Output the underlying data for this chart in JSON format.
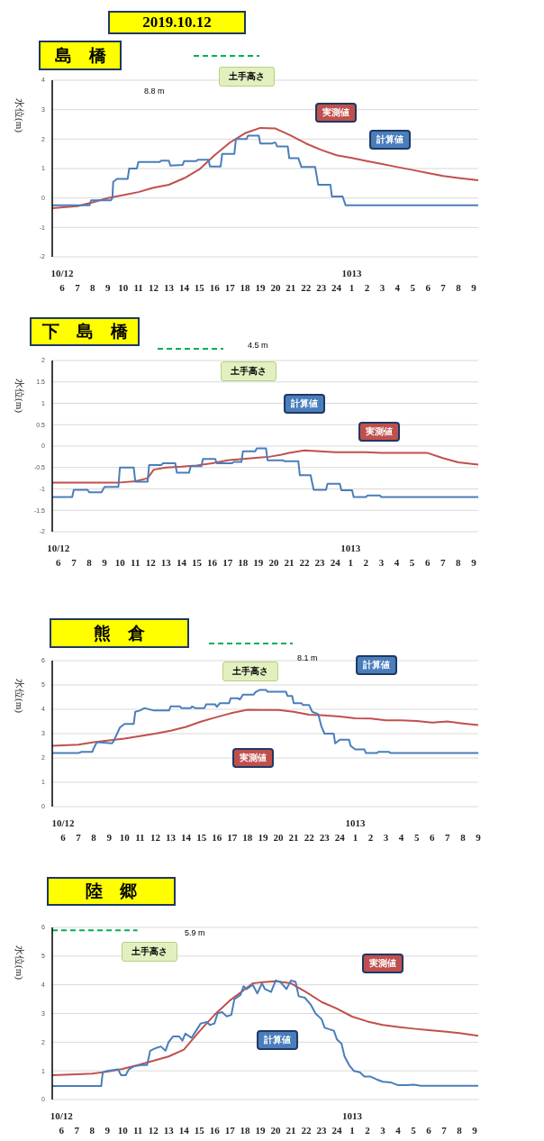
{
  "chart_data": [
    {
      "type": "line",
      "title": "2019.10.12",
      "subtitle": "島　橋",
      "ylabel": "水位(m)",
      "xlim": [
        "2019-10-12T05:21",
        "2019-10-13T09:18"
      ],
      "ylim": [
        -2,
        4
      ],
      "yticks": [
        -2,
        -1,
        0,
        1,
        2,
        3,
        4
      ],
      "grid": "y",
      "xticks": [
        {
          "value": "2019-10-12T06:00",
          "label": "10/12\n6"
        },
        {
          "value": "2019-10-12T07:00",
          "label": "7"
        },
        {
          "value": "2019-10-12T08:00",
          "label": "8"
        },
        {
          "value": "2019-10-12T09:00",
          "label": "9"
        },
        {
          "value": "2019-10-12T10:00",
          "label": "10"
        },
        {
          "value": "2019-10-12T11:00",
          "label": "11"
        },
        {
          "value": "2019-10-12T12:00",
          "label": "12"
        },
        {
          "value": "2019-10-12T13:00",
          "label": "13"
        },
        {
          "value": "2019-10-12T14:00",
          "label": "14"
        },
        {
          "value": "2019-10-12T15:00",
          "label": "15"
        },
        {
          "value": "2019-10-12T16:00",
          "label": "16"
        },
        {
          "value": "2019-10-12T17:00",
          "label": "17"
        },
        {
          "value": "2019-10-12T18:00",
          "label": "18"
        },
        {
          "value": "2019-10-12T19:00",
          "label": "19"
        },
        {
          "value": "2019-10-12T20:00",
          "label": "20"
        },
        {
          "value": "2019-10-12T21:00",
          "label": "21"
        },
        {
          "value": "2019-10-12T22:00",
          "label": "22"
        },
        {
          "value": "2019-10-12T23:00",
          "label": "23"
        },
        {
          "value": "2019-10-13T00:00",
          "label": "24"
        },
        {
          "value": "2019-10-13T01:00",
          "label": "1013\n1"
        },
        {
          "value": "2019-10-13T02:00",
          "label": "2"
        },
        {
          "value": "2019-10-13T03:00",
          "label": "3"
        },
        {
          "value": "2019-10-13T04:00",
          "label": "4"
        },
        {
          "value": "2019-10-13T05:00",
          "label": "5"
        },
        {
          "value": "2019-10-13T06:00",
          "label": "6"
        },
        {
          "value": "2019-10-13T07:00",
          "label": "7"
        },
        {
          "value": "2019-10-13T08:00",
          "label": "8"
        },
        {
          "value": "2019-10-13T09:00",
          "label": "9"
        }
      ],
      "annotations": [
        "土手高さ",
        "8.8 m"
      ],
      "series": [
        {
          "name": "実測値",
          "color": "#c0504d",
          "x": [
            "2019-10-12T05:21",
            "2019-10-12T07:00",
            "2019-10-12T08:00",
            "2019-10-12T09:00",
            "2019-10-12T10:00",
            "2019-10-12T11:00",
            "2019-10-12T12:00",
            "2019-10-12T13:00",
            "2019-10-12T14:00",
            "2019-10-12T15:00",
            "2019-10-12T16:00",
            "2019-10-12T17:00",
            "2019-10-12T18:00",
            "2019-10-12T19:00",
            "2019-10-12T20:00",
            "2019-10-12T21:00",
            "2019-10-12T22:00",
            "2019-10-12T23:00",
            "2019-10-13T00:00",
            "2019-10-13T01:00",
            "2019-10-13T02:00",
            "2019-10-13T03:00",
            "2019-10-13T04:00",
            "2019-10-13T05:00",
            "2019-10-13T06:00",
            "2019-10-13T07:00",
            "2019-10-13T08:00",
            "2019-10-13T09:18"
          ],
          "values": [
            -0.35,
            -0.28,
            -0.15,
            0.0,
            0.1,
            0.2,
            0.35,
            0.45,
            0.67,
            0.97,
            1.45,
            1.88,
            2.2,
            2.38,
            2.36,
            2.12,
            1.85,
            1.63,
            1.45,
            1.36,
            1.25,
            1.15,
            1.05,
            0.95,
            0.85,
            0.75,
            0.68,
            0.6
          ]
        },
        {
          "name": "計算値",
          "color": "#4a7ebb",
          "x": [
            "2019-10-12T05:21",
            "2019-10-12T07:48",
            "2019-10-12T07:54",
            "2019-10-12T09:12",
            "2019-10-12T09:18",
            "2019-10-12T09:21",
            "2019-10-12T09:36",
            "2019-10-12T10:18",
            "2019-10-12T10:24",
            "2019-10-12T10:54",
            "2019-10-12T11:00",
            "2019-10-12T12:24",
            "2019-10-12T12:30",
            "2019-10-12T13:00",
            "2019-10-12T13:06",
            "2019-10-12T13:54",
            "2019-10-12T14:00",
            "2019-10-12T14:48",
            "2019-10-12T14:54",
            "2019-10-12T15:36",
            "2019-10-12T15:42",
            "2019-10-12T16:24",
            "2019-10-12T16:30",
            "2019-10-12T17:18",
            "2019-10-12T17:24",
            "2019-10-12T18:06",
            "2019-10-12T18:12",
            "2019-10-12T18:54",
            "2019-10-12T19:00",
            "2019-10-12T19:48",
            "2019-10-12T19:54",
            "2019-10-12T20:00",
            "2019-10-12T20:06",
            "2019-10-12T20:48",
            "2019-10-12T20:54",
            "2019-10-12T21:30",
            "2019-10-12T21:42",
            "2019-10-12T22:36",
            "2019-10-12T22:48",
            "2019-10-12T23:36",
            "2019-10-12T23:42",
            "2019-10-13T00:24",
            "2019-10-13T00:36",
            "2019-10-13T09:18"
          ],
          "values": [
            -0.25,
            -0.25,
            -0.08,
            -0.08,
            0.0,
            0.55,
            0.65,
            0.65,
            1.0,
            1.0,
            1.22,
            1.22,
            1.27,
            1.27,
            1.1,
            1.12,
            1.25,
            1.25,
            1.3,
            1.3,
            1.07,
            1.07,
            1.5,
            1.5,
            2.0,
            2.0,
            2.12,
            2.12,
            1.85,
            1.85,
            1.88,
            1.88,
            1.75,
            1.75,
            1.35,
            1.35,
            1.05,
            1.05,
            0.45,
            0.45,
            0.05,
            0.05,
            -0.25,
            -0.25
          ]
        }
      ]
    },
    {
      "type": "line",
      "title": "下　島　橋",
      "ylabel": "水位(m)",
      "xlim": [
        "2019-10-12T05:36",
        "2019-10-13T09:18"
      ],
      "ylim": [
        -2,
        2
      ],
      "yticks": [
        -2,
        -1.5,
        -1,
        -0.5,
        0,
        0.5,
        1,
        1.5,
        2
      ],
      "grid": "y",
      "xticks": [
        {
          "value": "2019-10-12T06:00",
          "label": "10/12\n6"
        },
        {
          "value": "2019-10-12T07:00",
          "label": "7"
        },
        {
          "value": "2019-10-12T08:00",
          "label": "8"
        },
        {
          "value": "2019-10-12T09:00",
          "label": "9"
        },
        {
          "value": "2019-10-12T10:00",
          "label": "10"
        },
        {
          "value": "2019-10-12T11:00",
          "label": "11"
        },
        {
          "value": "2019-10-12T12:00",
          "label": "12"
        },
        {
          "value": "2019-10-12T13:00",
          "label": "13"
        },
        {
          "value": "2019-10-12T14:00",
          "label": "14"
        },
        {
          "value": "2019-10-12T15:00",
          "label": "15"
        },
        {
          "value": "2019-10-12T16:00",
          "label": "16"
        },
        {
          "value": "2019-10-12T17:00",
          "label": "17"
        },
        {
          "value": "2019-10-12T18:00",
          "label": "18"
        },
        {
          "value": "2019-10-12T19:00",
          "label": "19"
        },
        {
          "value": "2019-10-12T20:00",
          "label": "20"
        },
        {
          "value": "2019-10-12T21:00",
          "label": "21"
        },
        {
          "value": "2019-10-12T22:00",
          "label": "22"
        },
        {
          "value": "2019-10-12T23:00",
          "label": "23"
        },
        {
          "value": "2019-10-13T00:00",
          "label": "24"
        },
        {
          "value": "2019-10-13T01:00",
          "label": "1013\n1"
        },
        {
          "value": "2019-10-13T02:00",
          "label": "2"
        },
        {
          "value": "2019-10-13T03:00",
          "label": "3"
        },
        {
          "value": "2019-10-13T04:00",
          "label": "4"
        },
        {
          "value": "2019-10-13T05:00",
          "label": "5"
        },
        {
          "value": "2019-10-13T06:00",
          "label": "6"
        },
        {
          "value": "2019-10-13T07:00",
          "label": "7"
        },
        {
          "value": "2019-10-13T08:00",
          "label": "8"
        },
        {
          "value": "2019-10-13T09:00",
          "label": "9"
        }
      ],
      "annotations": [
        "土手高さ",
        "4.5 m"
      ],
      "series": [
        {
          "name": "実測値",
          "color": "#c0504d",
          "x": [
            "2019-10-12T05:36",
            "2019-10-12T10:00",
            "2019-10-12T11:00",
            "2019-10-12T11:48",
            "2019-10-12T12:12",
            "2019-10-12T13:00",
            "2019-10-12T14:00",
            "2019-10-12T15:00",
            "2019-10-12T16:00",
            "2019-10-12T17:00",
            "2019-10-12T18:00",
            "2019-10-12T19:00",
            "2019-10-12T19:42",
            "2019-10-12T20:30",
            "2019-10-12T21:00",
            "2019-10-12T22:00",
            "2019-10-12T23:00",
            "2019-10-13T00:00",
            "2019-10-13T01:00",
            "2019-10-13T02:00",
            "2019-10-13T03:00",
            "2019-10-13T04:00",
            "2019-10-13T05:00",
            "2019-10-13T06:00",
            "2019-10-13T07:00",
            "2019-10-13T08:00",
            "2019-10-13T09:18"
          ],
          "values": [
            -0.85,
            -0.85,
            -0.82,
            -0.75,
            -0.55,
            -0.5,
            -0.48,
            -0.45,
            -0.4,
            -0.33,
            -0.3,
            -0.27,
            -0.25,
            -0.2,
            -0.16,
            -0.1,
            -0.12,
            -0.14,
            -0.14,
            -0.14,
            -0.16,
            -0.16,
            -0.16,
            -0.16,
            -0.28,
            -0.38,
            -0.43
          ]
        },
        {
          "name": "計算値",
          "color": "#4a7ebb",
          "x": [
            "2019-10-12T05:36",
            "2019-10-12T06:54",
            "2019-10-12T07:00",
            "2019-10-12T07:54",
            "2019-10-12T08:00",
            "2019-10-12T08:48",
            "2019-10-12T09:00",
            "2019-10-12T09:54",
            "2019-10-12T10:00",
            "2019-10-12T10:54",
            "2019-10-12T11:00",
            "2019-10-12T11:48",
            "2019-10-12T11:54",
            "2019-10-12T12:42",
            "2019-10-12T12:48",
            "2019-10-12T13:36",
            "2019-10-12T13:42",
            "2019-10-12T14:30",
            "2019-10-12T14:36",
            "2019-10-12T15:18",
            "2019-10-12T15:24",
            "2019-10-12T16:12",
            "2019-10-12T16:18",
            "2019-10-12T17:18",
            "2019-10-12T17:24",
            "2019-10-12T17:54",
            "2019-10-12T18:00",
            "2019-10-12T18:48",
            "2019-10-12T18:54",
            "2019-10-12T19:30",
            "2019-10-12T19:36",
            "2019-10-12T20:36",
            "2019-10-12T20:42",
            "2019-10-12T21:36",
            "2019-10-12T21:42",
            "2019-10-12T22:24",
            "2019-10-12T22:36",
            "2019-10-12T23:24",
            "2019-10-12T23:30",
            "2019-10-13T00:18",
            "2019-10-13T00:24",
            "2019-10-13T01:06",
            "2019-10-13T01:12",
            "2019-10-13T02:00",
            "2019-10-13T02:06",
            "2019-10-13T02:54",
            "2019-10-13T03:00",
            "2019-10-13T09:18"
          ],
          "values": [
            -1.19,
            -1.19,
            -1.02,
            -1.02,
            -1.08,
            -1.08,
            -0.95,
            -0.95,
            -0.5,
            -0.5,
            -0.83,
            -0.83,
            -0.44,
            -0.44,
            -0.4,
            -0.4,
            -0.62,
            -0.62,
            -0.47,
            -0.47,
            -0.3,
            -0.3,
            -0.4,
            -0.4,
            -0.37,
            -0.37,
            -0.12,
            -0.12,
            -0.05,
            -0.05,
            -0.33,
            -0.33,
            -0.35,
            -0.35,
            -0.68,
            -0.68,
            -1.02,
            -1.02,
            -0.88,
            -0.88,
            -1.03,
            -1.03,
            -1.19,
            -1.19,
            -1.15,
            -1.15,
            -1.19,
            -1.19
          ]
        }
      ]
    },
    {
      "type": "line",
      "title": "熊　倉",
      "ylabel": "水位(m)",
      "xlim": [
        "2019-10-12T05:18",
        "2019-10-13T09:00"
      ],
      "ylim": [
        0,
        6
      ],
      "yticks": [
        0,
        1,
        2,
        3,
        4,
        5,
        6
      ],
      "grid": "y",
      "xticks": [
        {
          "value": "2019-10-12T06:00",
          "label": "10/12\n6"
        },
        {
          "value": "2019-10-12T07:00",
          "label": "7"
        },
        {
          "value": "2019-10-12T08:00",
          "label": "8"
        },
        {
          "value": "2019-10-12T09:00",
          "label": "9"
        },
        {
          "value": "2019-10-12T10:00",
          "label": "10"
        },
        {
          "value": "2019-10-12T11:00",
          "label": "11"
        },
        {
          "value": "2019-10-12T12:00",
          "label": "12"
        },
        {
          "value": "2019-10-12T13:00",
          "label": "13"
        },
        {
          "value": "2019-10-12T14:00",
          "label": "14"
        },
        {
          "value": "2019-10-12T15:00",
          "label": "15"
        },
        {
          "value": "2019-10-12T16:00",
          "label": "16"
        },
        {
          "value": "2019-10-12T17:00",
          "label": "17"
        },
        {
          "value": "2019-10-12T18:00",
          "label": "18"
        },
        {
          "value": "2019-10-12T19:00",
          "label": "19"
        },
        {
          "value": "2019-10-12T20:00",
          "label": "20"
        },
        {
          "value": "2019-10-12T21:00",
          "label": "21"
        },
        {
          "value": "2019-10-12T22:00",
          "label": "22"
        },
        {
          "value": "2019-10-12T23:00",
          "label": "23"
        },
        {
          "value": "2019-10-13T00:00",
          "label": "24"
        },
        {
          "value": "2019-10-13T01:00",
          "label": "1013\n1"
        },
        {
          "value": "2019-10-13T02:00",
          "label": "2"
        },
        {
          "value": "2019-10-13T03:00",
          "label": "3"
        },
        {
          "value": "2019-10-13T04:00",
          "label": "4"
        },
        {
          "value": "2019-10-13T05:00",
          "label": "5"
        },
        {
          "value": "2019-10-13T06:00",
          "label": "6"
        },
        {
          "value": "2019-10-13T07:00",
          "label": "7"
        },
        {
          "value": "2019-10-13T08:00",
          "label": "8"
        },
        {
          "value": "2019-10-13T09:00",
          "label": "9"
        }
      ],
      "annotations": [
        "土手高さ",
        "8.1 m"
      ],
      "series": [
        {
          "name": "実測値",
          "color": "#c0504d",
          "x": [
            "2019-10-12T05:18",
            "2019-10-12T07:00",
            "2019-10-12T08:00",
            "2019-10-12T09:00",
            "2019-10-12T10:00",
            "2019-10-12T11:00",
            "2019-10-12T12:00",
            "2019-10-12T13:00",
            "2019-10-12T14:00",
            "2019-10-12T15:00",
            "2019-10-12T16:00",
            "2019-10-12T17:00",
            "2019-10-12T18:00",
            "2019-10-12T19:00",
            "2019-10-12T20:00",
            "2019-10-12T21:00",
            "2019-10-12T22:00",
            "2019-10-12T23:00",
            "2019-10-13T00:00",
            "2019-10-13T01:00",
            "2019-10-13T02:00",
            "2019-10-13T03:00",
            "2019-10-13T04:00",
            "2019-10-13T05:00",
            "2019-10-13T06:00",
            "2019-10-13T07:00",
            "2019-10-13T08:00",
            "2019-10-13T09:00"
          ],
          "values": [
            2.5,
            2.55,
            2.65,
            2.72,
            2.8,
            2.9,
            3.0,
            3.12,
            3.28,
            3.5,
            3.68,
            3.85,
            3.98,
            3.97,
            3.97,
            3.9,
            3.78,
            3.75,
            3.7,
            3.63,
            3.62,
            3.55,
            3.55,
            3.52,
            3.45,
            3.5,
            3.42,
            3.35
          ]
        },
        {
          "name": "計算値",
          "color": "#4a7ebb",
          "x": [
            "2019-10-12T05:18",
            "2019-10-12T07:00",
            "2019-10-12T07:12",
            "2019-10-12T07:54",
            "2019-10-12T08:00",
            "2019-10-12T08:12",
            "2019-10-12T09:12",
            "2019-10-12T09:18",
            "2019-10-12T09:42",
            "2019-10-12T10:00",
            "2019-10-12T10:36",
            "2019-10-12T10:42",
            "2019-10-12T11:00",
            "2019-10-12T11:18",
            "2019-10-12T11:54",
            "2019-10-12T12:00",
            "2019-10-12T12:54",
            "2019-10-12T13:00",
            "2019-10-12T13:36",
            "2019-10-12T13:42",
            "2019-10-12T14:18",
            "2019-10-12T14:24",
            "2019-10-12T14:36",
            "2019-10-12T15:12",
            "2019-10-12T15:18",
            "2019-10-12T15:54",
            "2019-10-12T16:00",
            "2019-10-12T16:12",
            "2019-10-12T16:48",
            "2019-10-12T16:54",
            "2019-10-12T17:24",
            "2019-10-12T17:30",
            "2019-10-12T17:42",
            "2019-10-12T18:24",
            "2019-10-12T18:30",
            "2019-10-12T18:48",
            "2019-10-12T19:12",
            "2019-10-12T19:18",
            "2019-10-12T20:30",
            "2019-10-12T20:36",
            "2019-10-12T20:54",
            "2019-10-12T21:00",
            "2019-10-12T21:30",
            "2019-10-12T21:36",
            "2019-10-12T22:00",
            "2019-10-12T22:12",
            "2019-10-12T22:36",
            "2019-10-12T22:48",
            "2019-10-12T23:00",
            "2019-10-12T23:36",
            "2019-10-12T23:42",
            "2019-10-13T00:00",
            "2019-10-13T00:36",
            "2019-10-13T00:42",
            "2019-10-13T01:00",
            "2019-10-13T01:36",
            "2019-10-13T01:42",
            "2019-10-13T02:24",
            "2019-10-13T02:30",
            "2019-10-13T03:12",
            "2019-10-13T03:18",
            "2019-10-13T09:00"
          ],
          "values": [
            2.2,
            2.2,
            2.25,
            2.25,
            2.4,
            2.65,
            2.6,
            2.7,
            3.25,
            3.4,
            3.4,
            3.9,
            3.95,
            4.05,
            3.95,
            3.95,
            3.95,
            4.12,
            4.12,
            4.05,
            4.05,
            4.12,
            4.05,
            4.05,
            4.2,
            4.2,
            4.1,
            4.25,
            4.25,
            4.45,
            4.45,
            4.4,
            4.6,
            4.6,
            4.7,
            4.8,
            4.8,
            4.72,
            4.72,
            4.55,
            4.55,
            4.25,
            4.25,
            4.18,
            4.18,
            3.9,
            3.8,
            3.3,
            3.0,
            3.0,
            2.6,
            2.75,
            2.75,
            2.5,
            2.35,
            2.35,
            2.2,
            2.2,
            2.25,
            2.25,
            2.2,
            2.2
          ]
        }
      ]
    },
    {
      "type": "line",
      "title": "陸　郷",
      "ylabel": "水位(m)",
      "xlim": [
        "2019-10-12T05:24",
        "2019-10-13T09:14"
      ],
      "ylim": [
        0,
        6
      ],
      "yticks": [
        0,
        1,
        2,
        3,
        4,
        5,
        6
      ],
      "grid": "y",
      "xticks": [
        {
          "value": "2019-10-12T06:00",
          "label": "10/12\n6"
        },
        {
          "value": "2019-10-12T07:00",
          "label": "7"
        },
        {
          "value": "2019-10-12T08:00",
          "label": "8"
        },
        {
          "value": "2019-10-12T09:00",
          "label": "9"
        },
        {
          "value": "2019-10-12T10:00",
          "label": "10"
        },
        {
          "value": "2019-10-12T11:00",
          "label": "11"
        },
        {
          "value": "2019-10-12T12:00",
          "label": "12"
        },
        {
          "value": "2019-10-12T13:00",
          "label": "13"
        },
        {
          "value": "2019-10-12T14:00",
          "label": "14"
        },
        {
          "value": "2019-10-12T15:00",
          "label": "15"
        },
        {
          "value": "2019-10-12T16:00",
          "label": "16"
        },
        {
          "value": "2019-10-12T17:00",
          "label": "17"
        },
        {
          "value": "2019-10-12T18:00",
          "label": "18"
        },
        {
          "value": "2019-10-12T19:00",
          "label": "19"
        },
        {
          "value": "2019-10-12T20:00",
          "label": "20"
        },
        {
          "value": "2019-10-12T21:00",
          "label": "21"
        },
        {
          "value": "2019-10-12T22:00",
          "label": "22"
        },
        {
          "value": "2019-10-12T23:00",
          "label": "23"
        },
        {
          "value": "2019-10-13T00:00",
          "label": "24"
        },
        {
          "value": "2019-10-13T01:00",
          "label": "1013\n1"
        },
        {
          "value": "2019-10-13T02:00",
          "label": "2"
        },
        {
          "value": "2019-10-13T03:00",
          "label": "3"
        },
        {
          "value": "2019-10-13T04:00",
          "label": "4"
        },
        {
          "value": "2019-10-13T05:00",
          "label": "5"
        },
        {
          "value": "2019-10-13T06:00",
          "label": "6"
        },
        {
          "value": "2019-10-13T07:00",
          "label": "7"
        },
        {
          "value": "2019-10-13T08:00",
          "label": "8"
        },
        {
          "value": "2019-10-13T09:00",
          "label": "9"
        }
      ],
      "ref_lines": [
        {
          "axis": "y",
          "value": 5.9,
          "label": "土手高さ",
          "color": "#00b050",
          "line_style": "dashed"
        }
      ],
      "annotations": [
        "5.9 m"
      ],
      "series": [
        {
          "name": "実測値",
          "color": "#c0504d",
          "x": [
            "2019-10-12T05:24",
            "2019-10-12T07:00",
            "2019-10-12T08:00",
            "2019-10-12T09:00",
            "2019-10-12T10:00",
            "2019-10-12T11:00",
            "2019-10-12T12:00",
            "2019-10-12T13:00",
            "2019-10-12T14:00",
            "2019-10-12T15:00",
            "2019-10-12T16:00",
            "2019-10-12T17:00",
            "2019-10-12T18:00",
            "2019-10-12T18:30",
            "2019-10-12T19:00",
            "2019-10-12T20:00",
            "2019-10-12T21:00",
            "2019-10-12T22:00",
            "2019-10-12T23:00",
            "2019-10-13T00:00",
            "2019-10-13T01:00",
            "2019-10-13T02:00",
            "2019-10-13T03:00",
            "2019-10-13T04:00",
            "2019-10-13T05:00",
            "2019-10-13T06:00",
            "2019-10-13T07:00",
            "2019-10-13T08:00",
            "2019-10-13T09:14"
          ],
          "values": [
            0.85,
            0.88,
            0.9,
            0.97,
            1.07,
            1.2,
            1.35,
            1.5,
            1.74,
            2.37,
            2.95,
            3.45,
            3.85,
            4.05,
            4.08,
            4.12,
            4.05,
            3.74,
            3.4,
            3.17,
            2.89,
            2.72,
            2.6,
            2.53,
            2.47,
            2.42,
            2.37,
            2.32,
            2.22
          ]
        },
        {
          "name": "計算値",
          "color": "#4a7ebb",
          "x": [
            "2019-10-12T05:24",
            "2019-10-12T08:36",
            "2019-10-12T08:42",
            "2019-10-12T09:00",
            "2019-10-12T09:42",
            "2019-10-12T09:54",
            "2019-10-12T10:12",
            "2019-10-12T10:24",
            "2019-10-12T10:42",
            "2019-10-12T11:12",
            "2019-10-12T11:36",
            "2019-10-12T11:48",
            "2019-10-12T12:12",
            "2019-10-12T12:30",
            "2019-10-12T12:48",
            "2019-10-12T13:00",
            "2019-10-12T13:18",
            "2019-10-12T13:42",
            "2019-10-12T13:54",
            "2019-10-12T14:06",
            "2019-10-12T14:30",
            "2019-10-12T14:48",
            "2019-10-12T15:06",
            "2019-10-12T15:30",
            "2019-10-12T15:42",
            "2019-10-12T16:00",
            "2019-10-12T16:12",
            "2019-10-12T16:30",
            "2019-10-12T16:48",
            "2019-10-12T17:06",
            "2019-10-12T17:18",
            "2019-10-12T17:42",
            "2019-10-12T17:54",
            "2019-10-12T18:06",
            "2019-10-12T18:30",
            "2019-10-12T18:48",
            "2019-10-12T19:06",
            "2019-10-12T19:18",
            "2019-10-12T19:42",
            "2019-10-12T20:00",
            "2019-10-12T20:18",
            "2019-10-12T20:42",
            "2019-10-12T21:00",
            "2019-10-12T21:18",
            "2019-10-12T21:30",
            "2019-10-12T21:54",
            "2019-10-12T22:18",
            "2019-10-12T22:36",
            "2019-10-12T23:00",
            "2019-10-12T23:12",
            "2019-10-12T23:48",
            "2019-10-13T00:00",
            "2019-10-13T00:18",
            "2019-10-13T00:30",
            "2019-10-13T00:48",
            "2019-10-13T01:06",
            "2019-10-13T01:30",
            "2019-10-13T01:48",
            "2019-10-13T02:12",
            "2019-10-13T02:36",
            "2019-10-13T03:00",
            "2019-10-13T03:30",
            "2019-10-13T04:00",
            "2019-10-13T04:36",
            "2019-10-13T05:00",
            "2019-10-13T05:30",
            "2019-10-13T09:14"
          ],
          "values": [
            0.47,
            0.47,
            0.95,
            1.0,
            1.05,
            0.85,
            0.85,
            1.05,
            1.15,
            1.2,
            1.2,
            1.7,
            1.8,
            1.85,
            1.7,
            2.0,
            2.2,
            2.2,
            2.05,
            2.3,
            2.15,
            2.4,
            2.65,
            2.7,
            2.6,
            2.65,
            3.0,
            3.05,
            2.9,
            2.95,
            3.5,
            3.65,
            3.95,
            3.85,
            4.0,
            3.7,
            4.05,
            3.85,
            3.75,
            4.15,
            4.1,
            3.85,
            4.15,
            4.1,
            3.6,
            3.55,
            3.3,
            3.0,
            2.8,
            2.5,
            2.4,
            2.1,
            1.95,
            1.5,
            1.2,
            1.0,
            0.95,
            0.8,
            0.8,
            0.7,
            0.62,
            0.6,
            0.5,
            0.5,
            0.52,
            0.48,
            0.48
          ]
        }
      ]
    }
  ]
}
